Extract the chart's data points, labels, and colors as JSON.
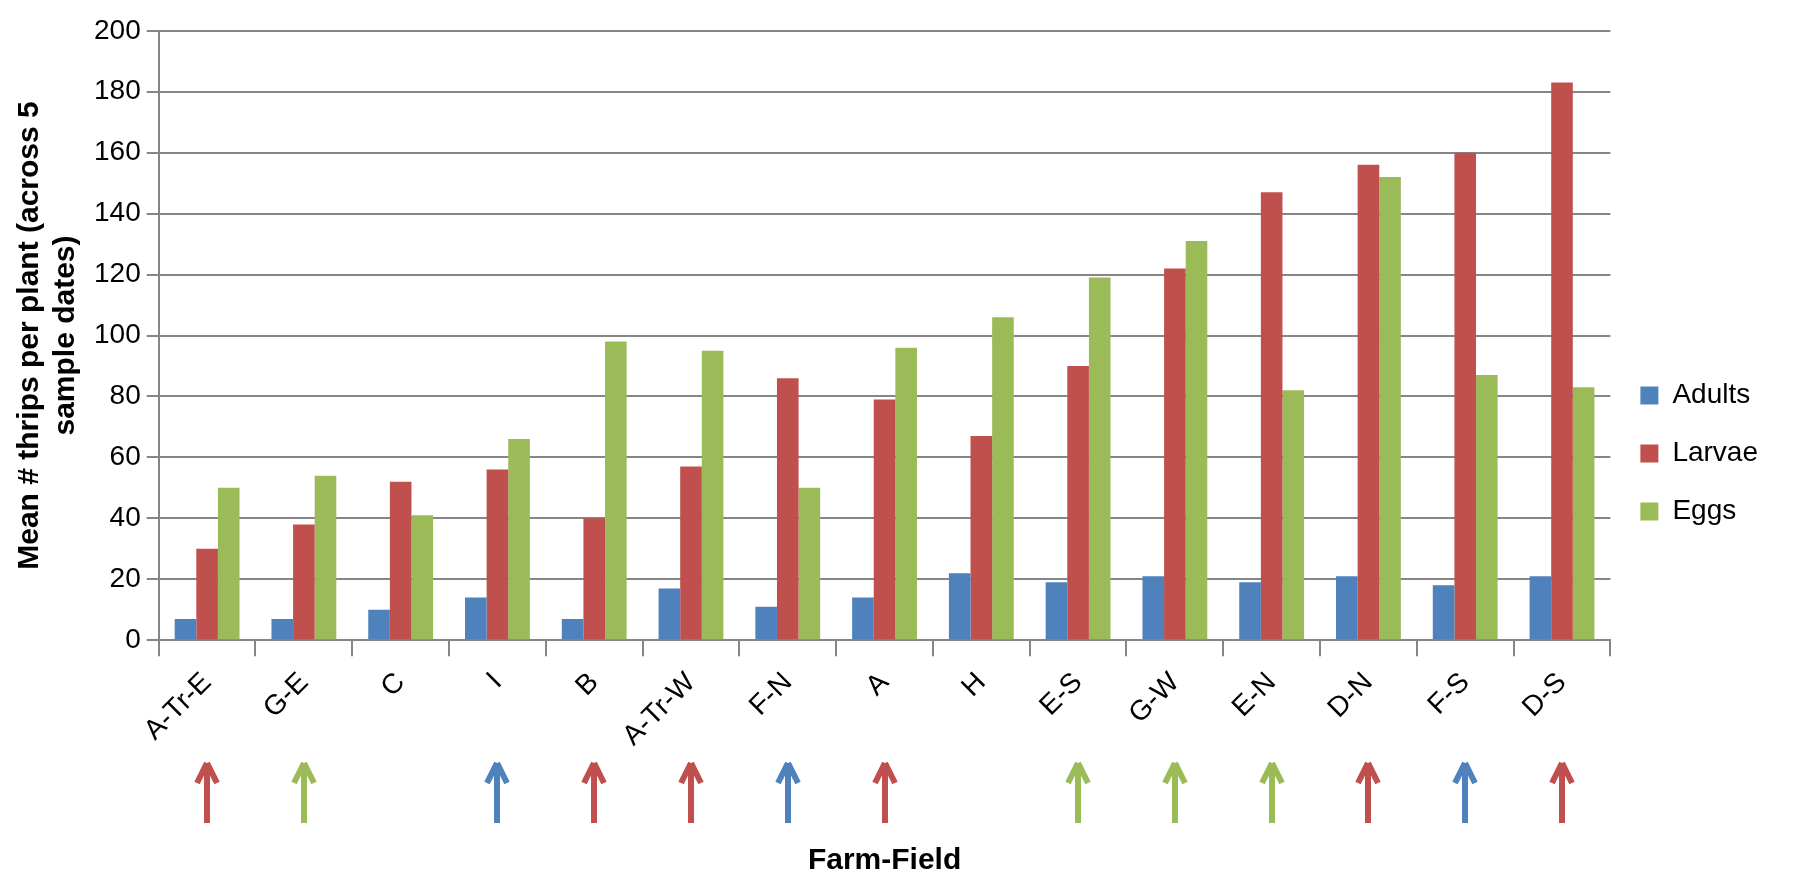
{
  "chart_data": {
    "type": "bar",
    "xlabel": "Farm-Field",
    "ylabel": "Mean # thrips per plant (across 5 sample dates)",
    "categories": [
      "A-Tr-E",
      "G-E",
      "C",
      "I",
      "B",
      "A-Tr-W",
      "F-N",
      "A",
      "H",
      "E-S",
      "G-W",
      "E-N",
      "D-N",
      "F-S",
      "D-S"
    ],
    "series": [
      {
        "name": "Adults",
        "color": "#4f81bd",
        "values": [
          7,
          7,
          10,
          14,
          7,
          17,
          11,
          14,
          22,
          19,
          21,
          19,
          21,
          18,
          21
        ]
      },
      {
        "name": "Larvae",
        "color": "#c0504d",
        "values": [
          30,
          38,
          52,
          56,
          40,
          57,
          86,
          79,
          67,
          90,
          122,
          147,
          156,
          160,
          183
        ]
      },
      {
        "name": "Eggs",
        "color": "#9bbb59",
        "values": [
          50,
          54,
          41,
          66,
          98,
          95,
          50,
          96,
          106,
          119,
          131,
          82,
          152,
          87,
          83
        ]
      }
    ],
    "ylim": [
      0,
      200
    ],
    "yticks": [
      0,
      20,
      40,
      60,
      80,
      100,
      120,
      140,
      160,
      180,
      200
    ],
    "grid": "y",
    "legend": "right"
  }
}
